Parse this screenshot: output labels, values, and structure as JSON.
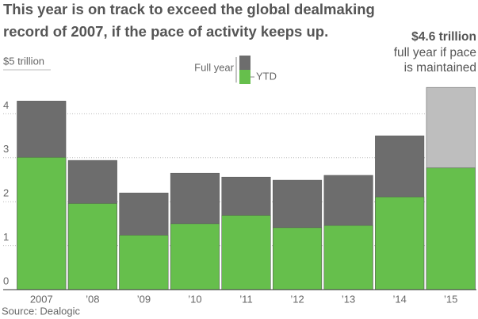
{
  "chart_data": {
    "type": "bar",
    "title_lines": [
      "This year is on track to exceed the global dealmaking",
      "record of 2007, if the pace of activity keeps up."
    ],
    "annotation": {
      "headline": "$4.6 trillion",
      "lines": [
        "full year if pace",
        "is maintained"
      ]
    },
    "source": "Source: Dealogic",
    "categories": [
      "2007",
      "’08",
      "’09",
      "’10",
      "’11",
      "’12",
      "’13",
      "’14",
      "’15"
    ],
    "series": [
      {
        "name": "Full year",
        "color": "#6d6d6d",
        "colors": [
          "#6d6d6d",
          "#6d6d6d",
          "#6d6d6d",
          "#6d6d6d",
          "#6d6d6d",
          "#6d6d6d",
          "#6d6d6d",
          "#6d6d6d",
          "#bebebe"
        ],
        "values": [
          4.29,
          2.94,
          2.2,
          2.65,
          2.56,
          2.49,
          2.6,
          3.5,
          4.6
        ]
      },
      {
        "name": "YTD",
        "color": "#66bf4c",
        "values": [
          3.01,
          1.96,
          1.24,
          1.5,
          1.69,
          1.41,
          1.46,
          2.11,
          2.77
        ]
      }
    ],
    "ylim": [
      0,
      5
    ],
    "yticks": [
      0,
      1,
      2,
      3,
      4,
      {
        "value": 5,
        "label": "$5 trillion"
      }
    ],
    "grid": true
  }
}
